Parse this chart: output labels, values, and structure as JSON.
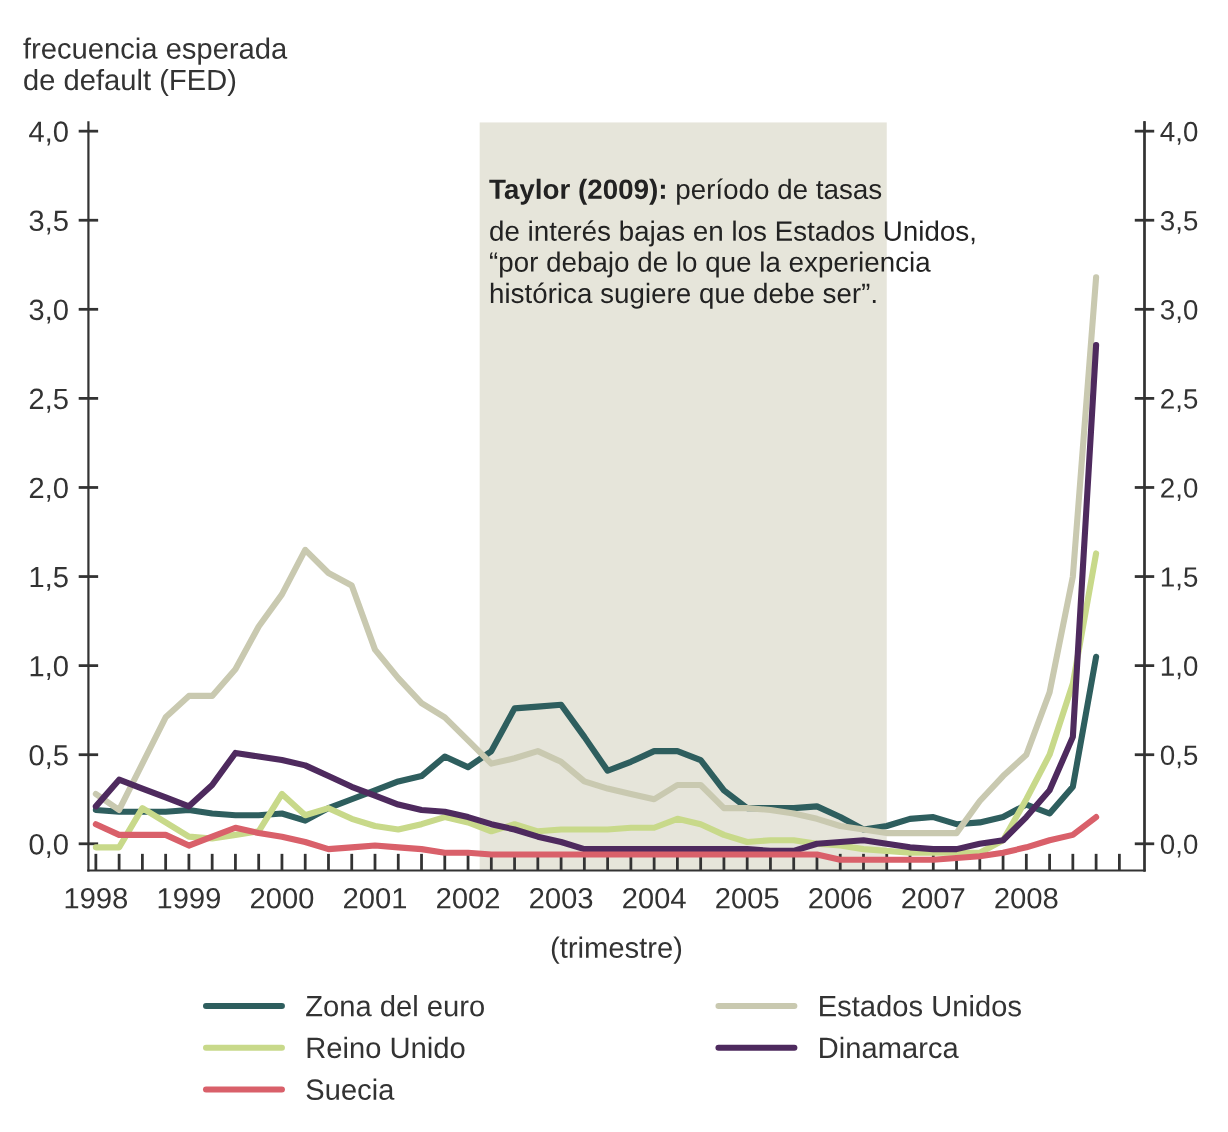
{
  "chart_data": {
    "type": "line",
    "ylabel": "frecuencia esperada\nde default (FED)",
    "xlabel": "(trimestre)",
    "x": [
      1998.0,
      1998.25,
      1998.5,
      1998.75,
      1999.0,
      1999.25,
      1999.5,
      1999.75,
      2000.0,
      2000.25,
      2000.5,
      2000.75,
      2001.0,
      2001.25,
      2001.5,
      2001.75,
      2002.0,
      2002.25,
      2002.5,
      2002.75,
      2003.0,
      2003.25,
      2003.5,
      2003.75,
      2004.0,
      2004.25,
      2004.5,
      2004.75,
      2005.0,
      2005.25,
      2005.5,
      2005.75,
      2006.0,
      2006.25,
      2006.5,
      2006.75,
      2007.0,
      2007.25,
      2007.5,
      2007.75,
      2008.0,
      2008.25,
      2008.5,
      2008.75
    ],
    "series": [
      {
        "name": "Zona del euro",
        "color": "#2e5e5e",
        "values": [
          0.19,
          0.18,
          0.18,
          0.18,
          0.19,
          0.17,
          0.16,
          0.16,
          0.17,
          0.13,
          0.2,
          0.25,
          0.3,
          0.35,
          0.38,
          0.49,
          0.43,
          0.52,
          0.76,
          0.77,
          0.78,
          0.6,
          0.41,
          0.46,
          0.52,
          0.52,
          0.47,
          0.3,
          0.2,
          0.2,
          0.2,
          0.21,
          0.15,
          0.08,
          0.1,
          0.14,
          0.15,
          0.11,
          0.12,
          0.15,
          0.22,
          0.17,
          0.32,
          1.05
        ]
      },
      {
        "name": "Estados Unidos",
        "color": "#c9c9b0",
        "values": [
          0.28,
          0.19,
          0.45,
          0.71,
          0.83,
          0.83,
          0.98,
          1.22,
          1.4,
          1.65,
          1.52,
          1.45,
          1.09,
          0.93,
          0.79,
          0.71,
          0.58,
          0.45,
          0.48,
          0.52,
          0.46,
          0.35,
          0.31,
          0.28,
          0.25,
          0.33,
          0.33,
          0.2,
          0.2,
          0.19,
          0.17,
          0.14,
          0.1,
          0.08,
          0.06,
          0.06,
          0.06,
          0.06,
          0.24,
          0.38,
          0.5,
          0.85,
          1.5,
          3.18
        ]
      },
      {
        "name": "Reino Unido",
        "color": "#c8d98a",
        "values": [
          -0.02,
          -0.02,
          0.2,
          0.12,
          0.04,
          0.03,
          0.05,
          0.07,
          0.28,
          0.16,
          0.2,
          0.14,
          0.1,
          0.08,
          0.11,
          0.15,
          0.12,
          0.07,
          0.11,
          0.07,
          0.08,
          0.08,
          0.08,
          0.09,
          0.09,
          0.14,
          0.11,
          0.05,
          0.01,
          0.02,
          0.02,
          0.0,
          -0.01,
          -0.03,
          -0.04,
          -0.05,
          -0.05,
          -0.05,
          -0.05,
          0.02,
          0.25,
          0.5,
          0.9,
          1.63
        ]
      },
      {
        "name": "Dinamarca",
        "color": "#4e2a5e",
        "values": [
          0.21,
          0.36,
          0.31,
          0.26,
          0.21,
          0.33,
          0.51,
          0.49,
          0.47,
          0.44,
          0.38,
          0.32,
          0.27,
          0.22,
          0.19,
          0.18,
          0.15,
          0.11,
          0.08,
          0.04,
          0.01,
          -0.03,
          -0.03,
          -0.03,
          -0.03,
          -0.03,
          -0.03,
          -0.03,
          -0.03,
          -0.04,
          -0.04,
          0.0,
          0.01,
          0.02,
          0.0,
          -0.02,
          -0.03,
          -0.03,
          0.0,
          0.02,
          0.15,
          0.3,
          0.6,
          2.8
        ]
      },
      {
        "name": "Suecia",
        "color": "#d9606a",
        "values": [
          0.11,
          0.05,
          0.05,
          0.05,
          -0.01,
          0.04,
          0.09,
          0.06,
          0.04,
          0.01,
          -0.03,
          -0.02,
          -0.01,
          -0.02,
          -0.03,
          -0.05,
          -0.05,
          -0.06,
          -0.06,
          -0.06,
          -0.06,
          -0.06,
          -0.06,
          -0.06,
          -0.06,
          -0.06,
          -0.06,
          -0.06,
          -0.06,
          -0.06,
          -0.06,
          -0.06,
          -0.09,
          -0.09,
          -0.09,
          -0.09,
          -0.09,
          -0.08,
          -0.07,
          -0.05,
          -0.02,
          0.02,
          0.05,
          0.15
        ]
      }
    ],
    "xlim": [
      1997.92,
      2009.27
    ],
    "xticks": [
      {
        "value": 1998,
        "label": "1998"
      },
      {
        "value": 1998.25,
        "label": null
      },
      {
        "value": 1998.5,
        "label": null
      },
      {
        "value": 1998.75,
        "label": null
      },
      {
        "value": 1999,
        "label": "1999"
      },
      {
        "value": 1999.25,
        "label": null
      },
      {
        "value": 1999.5,
        "label": null
      },
      {
        "value": 1999.75,
        "label": null
      },
      {
        "value": 2000,
        "label": "2000"
      },
      {
        "value": 2000.25,
        "label": null
      },
      {
        "value": 2000.5,
        "label": null
      },
      {
        "value": 2000.75,
        "label": null
      },
      {
        "value": 2001,
        "label": "2001"
      },
      {
        "value": 2001.25,
        "label": null
      },
      {
        "value": 2001.5,
        "label": null
      },
      {
        "value": 2001.75,
        "label": null
      },
      {
        "value": 2002,
        "label": "2002"
      },
      {
        "value": 2002.25,
        "label": null
      },
      {
        "value": 2002.5,
        "label": null
      },
      {
        "value": 2002.75,
        "label": null
      },
      {
        "value": 2003,
        "label": "2003"
      },
      {
        "value": 2003.25,
        "label": null
      },
      {
        "value": 2003.5,
        "label": null
      },
      {
        "value": 2003.75,
        "label": null
      },
      {
        "value": 2004,
        "label": "2004"
      },
      {
        "value": 2004.25,
        "label": null
      },
      {
        "value": 2004.5,
        "label": null
      },
      {
        "value": 2004.75,
        "label": null
      },
      {
        "value": 2005,
        "label": "2005"
      },
      {
        "value": 2005.25,
        "label": null
      },
      {
        "value": 2005.5,
        "label": null
      },
      {
        "value": 2005.75,
        "label": null
      },
      {
        "value": 2006,
        "label": "2006"
      },
      {
        "value": 2006.25,
        "label": null
      },
      {
        "value": 2006.5,
        "label": null
      },
      {
        "value": 2006.75,
        "label": null
      },
      {
        "value": 2007,
        "label": "2007"
      },
      {
        "value": 2007.25,
        "label": null
      },
      {
        "value": 2007.5,
        "label": null
      },
      {
        "value": 2007.75,
        "label": null
      },
      {
        "value": 2008,
        "label": "2008"
      },
      {
        "value": 2008.25,
        "label": null
      },
      {
        "value": 2008.5,
        "label": null
      },
      {
        "value": 2008.75,
        "label": null
      },
      {
        "value": 2009,
        "label": null
      }
    ],
    "ylim": [
      -0.15,
      4.05
    ],
    "yticks": [
      {
        "value": 0,
        "label": "0,0"
      },
      {
        "value": 0.5,
        "label": "0,5"
      },
      {
        "value": 1,
        "label": "1,0"
      },
      {
        "value": 1.5,
        "label": "1,5"
      },
      {
        "value": 2,
        "label": "2,0"
      },
      {
        "value": 2.5,
        "label": "2,5"
      },
      {
        "value": 3,
        "label": "3,0"
      },
      {
        "value": 3.5,
        "label": "3,5"
      },
      {
        "value": 4,
        "label": "4,0"
      }
    ],
    "y2lim": [
      -0.15,
      4.05
    ],
    "y2ticks": [
      {
        "value": 0,
        "label": "0,0"
      },
      {
        "value": 0.5,
        "label": "0,5"
      },
      {
        "value": 1,
        "label": "1,0"
      },
      {
        "value": 1.5,
        "label": "1,5"
      },
      {
        "value": 2,
        "label": "2,0"
      },
      {
        "value": 2.5,
        "label": "2,5"
      },
      {
        "value": 3,
        "label": "3,0"
      },
      {
        "value": 3.5,
        "label": "3,5"
      },
      {
        "value": 4,
        "label": "4,0"
      }
    ],
    "bands": [
      {
        "axis": "x",
        "from": 2002.125,
        "to": 2006.5,
        "color": "#e6e5da"
      }
    ],
    "annotations": [
      "Taylor (2009):",
      "período de tasas",
      "de interés bajas en los Estados Unidos,\n“por debajo de lo que la experiencia\nhistórica sugiere que debe ser”."
    ],
    "legend": "bottom",
    "grid": false,
    "marker": "none",
    "line_style": "solid"
  }
}
